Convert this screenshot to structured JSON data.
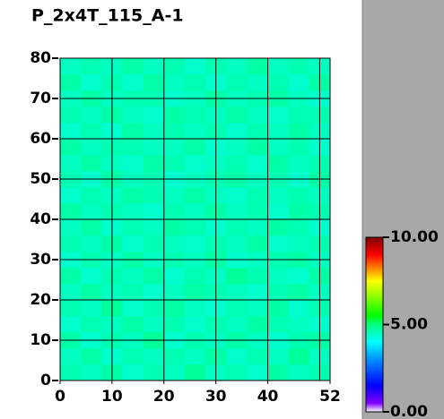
{
  "chart_data": {
    "type": "heatmap",
    "title": "P_2x4T_115_A-1",
    "xlim": [
      0,
      52
    ],
    "ylim": [
      0,
      80
    ],
    "xticks": [
      0,
      10,
      20,
      30,
      40,
      52
    ],
    "yticks": [
      0,
      10,
      20,
      30,
      40,
      50,
      60,
      70,
      80
    ],
    "xgrid": [
      10,
      20,
      30,
      40,
      50
    ],
    "grid": true,
    "clim": [
      0,
      10
    ],
    "cticks": [
      {
        "value": 10,
        "label": "10.00"
      },
      {
        "value": 5,
        "label": "5.00"
      },
      {
        "value": 0,
        "label": "0.00"
      }
    ],
    "colormap": [
      {
        "value": 0,
        "color": "#ffffff"
      },
      {
        "value": 0.5,
        "color": "#8000ff"
      },
      {
        "value": 1.5,
        "color": "#0000ff"
      },
      {
        "value": 3,
        "color": "#0090ff"
      },
      {
        "value": 4,
        "color": "#00ffff"
      },
      {
        "value": 5,
        "color": "#00ff80"
      },
      {
        "value": 5.5,
        "color": "#00ff00"
      },
      {
        "value": 7.5,
        "color": "#ffff00"
      },
      {
        "value": 9,
        "color": "#ff0000"
      },
      {
        "value": 10,
        "color": "#800000"
      }
    ],
    "z": [
      [
        4.6,
        4.5,
        4.7,
        4.4,
        4.6,
        4.5,
        4.8,
        4.5,
        4.6,
        4.4,
        4.7,
        4.5,
        4.6
      ],
      [
        4.5,
        4.7,
        4.4,
        4.6,
        4.5,
        4.6,
        4.5,
        4.7,
        4.4,
        4.6,
        4.5,
        4.8,
        4.5
      ],
      [
        4.7,
        4.4,
        4.6,
        4.5,
        4.8,
        4.4,
        4.6,
        4.5,
        4.7,
        4.5,
        4.4,
        4.6,
        4.7
      ],
      [
        4.4,
        4.6,
        4.5,
        4.7,
        4.5,
        4.6,
        4.4,
        4.6,
        4.5,
        4.7,
        4.6,
        4.5,
        4.4
      ],
      [
        4.6,
        4.5,
        4.8,
        4.4,
        4.6,
        4.7,
        4.5,
        4.4,
        4.6,
        4.5,
        4.7,
        4.4,
        4.6
      ],
      [
        4.5,
        4.7,
        4.5,
        4.6,
        4.4,
        4.5,
        4.7,
        4.6,
        4.5,
        4.4,
        4.6,
        4.7,
        4.5
      ],
      [
        4.7,
        4.4,
        4.6,
        4.5,
        4.7,
        4.4,
        4.6,
        4.5,
        4.8,
        4.6,
        4.5,
        4.4,
        4.7
      ],
      [
        4.4,
        4.6,
        4.5,
        4.7,
        4.5,
        4.6,
        4.5,
        4.7,
        4.4,
        4.5,
        4.6,
        4.7,
        4.5
      ],
      [
        4.6,
        4.5,
        4.7,
        4.4,
        4.6,
        4.5,
        4.4,
        4.6,
        4.5,
        4.7,
        4.4,
        4.5,
        4.6
      ],
      [
        4.5,
        4.7,
        4.4,
        4.6,
        4.5,
        4.7,
        4.6,
        4.4,
        4.6,
        4.5,
        4.7,
        4.6,
        4.4
      ],
      [
        4.7,
        4.5,
        4.6,
        4.5,
        4.4,
        4.6,
        4.5,
        4.7,
        4.5,
        4.6,
        4.4,
        4.7,
        4.6
      ],
      [
        4.4,
        4.6,
        4.5,
        4.7,
        4.6,
        4.5,
        4.7,
        4.5,
        4.4,
        4.6,
        4.5,
        4.6,
        4.5
      ],
      [
        4.6,
        4.4,
        4.7,
        4.5,
        4.6,
        4.4,
        4.5,
        4.6,
        4.7,
        4.5,
        4.6,
        4.4,
        4.7
      ],
      [
        4.5,
        4.7,
        4.5,
        4.4,
        4.7,
        4.6,
        4.4,
        4.5,
        4.6,
        4.4,
        4.7,
        4.5,
        4.6
      ],
      [
        4.7,
        4.5,
        4.6,
        4.6,
        4.5,
        4.5,
        4.7,
        4.4,
        4.5,
        4.7,
        4.5,
        4.6,
        4.4
      ],
      [
        4.4,
        4.6,
        4.4,
        4.7,
        4.5,
        4.6,
        4.5,
        4.6,
        4.4,
        4.6,
        4.5,
        4.7,
        4.5
      ],
      [
        4.6,
        4.5,
        4.7,
        4.5,
        4.4,
        4.7,
        4.6,
        4.5,
        4.7,
        4.5,
        4.4,
        4.6,
        4.6
      ],
      [
        4.5,
        4.7,
        4.5,
        4.6,
        4.6,
        4.4,
        4.5,
        4.7,
        4.5,
        4.6,
        4.7,
        4.5,
        4.4
      ],
      [
        4.7,
        4.4,
        4.6,
        4.4,
        4.7,
        4.5,
        4.6,
        4.4,
        4.6,
        4.5,
        4.6,
        4.4,
        4.7
      ],
      [
        4.5,
        4.6,
        4.5,
        4.7,
        4.5,
        4.6,
        4.4,
        4.6,
        4.5,
        4.7,
        4.5,
        4.6,
        4.5
      ]
    ]
  }
}
